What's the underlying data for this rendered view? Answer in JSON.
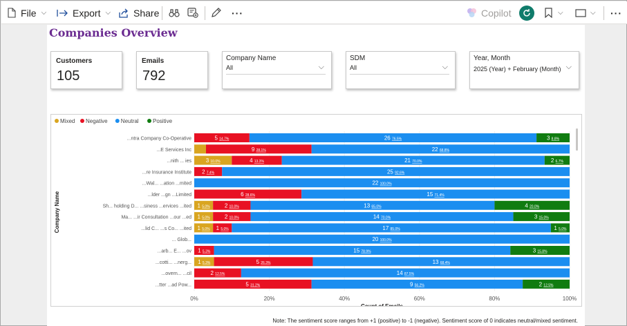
{
  "toolbar": {
    "file_label": "File",
    "export_label": "Export",
    "share_label": "Share",
    "copilot_label": "Copilot",
    "more_label": "···",
    "more_right_label": "···",
    "icons": [
      "file-icon",
      "export-icon",
      "share-icon",
      "binoculars-icon",
      "add-comment-icon",
      "pencil-icon",
      "copilot-icon",
      "reset-icon",
      "bookmark-icon",
      "view-icon"
    ]
  },
  "report": {
    "title": "Companies Overview",
    "cards": [
      {
        "label": "Customers",
        "value": "105"
      },
      {
        "label": "Emails",
        "value": "792"
      }
    ],
    "slicers": [
      {
        "label": "Company Name",
        "value": "All"
      },
      {
        "label": "SDM",
        "value": "All"
      },
      {
        "label": "Year, Month",
        "value": "2025 (Year) + February (Month)"
      }
    ],
    "note": "Note: The sentiment score ranges from +1 (positive) to -1 (negative). Sentiment score of 0 indicates neutral/mixed sentiment."
  },
  "chart_data": {
    "type": "bar",
    "orientation": "horizontal",
    "stacked": "100%",
    "legend_position": "top-left",
    "xlabel": "Count of Emails",
    "ylabel": "Company Name",
    "x_ticks": [
      "0%",
      "20%",
      "40%",
      "60%",
      "80%",
      "100%"
    ],
    "xlim": [
      0,
      100
    ],
    "colors": {
      "Mixed": "#d9a520",
      "Negative": "#e81123",
      "Neutral": "#1b8ef0",
      "Positive": "#107c10"
    },
    "series_names": [
      "Mixed",
      "Negative",
      "Neutral",
      "Positive"
    ],
    "rows": [
      {
        "label": "...ntra Company Co-Operative",
        "segments": [
          {
            "series": "Negative",
            "value": 5,
            "label": "5",
            "pct": "14.7%"
          },
          {
            "series": "Neutral",
            "value": 26,
            "label": "26",
            "pct": "76.5%"
          },
          {
            "series": "Positive",
            "value": 3,
            "label": "3",
            "pct": "8.8%"
          }
        ]
      },
      {
        "label": "...E Services Inc",
        "segments": [
          {
            "series": "Mixed",
            "value": 1,
            "label": "",
            "pct": ""
          },
          {
            "series": "Negative",
            "value": 9,
            "label": "9",
            "pct": "28.1%"
          },
          {
            "series": "Neutral",
            "value": 22,
            "label": "22",
            "pct": "68.8%"
          }
        ]
      },
      {
        "label": "...nith ... ies",
        "segments": [
          {
            "series": "Mixed",
            "value": 3,
            "label": "3",
            "pct": "10.0%"
          },
          {
            "series": "Negative",
            "value": 4,
            "label": "4",
            "pct": "13.3%"
          },
          {
            "series": "Neutral",
            "value": 21,
            "label": "21",
            "pct": "70.0%"
          },
          {
            "series": "Positive",
            "value": 2,
            "label": "2",
            "pct": "6.7%"
          }
        ]
      },
      {
        "label": "...re Insurance Institute",
        "segments": [
          {
            "series": "Negative",
            "value": 2,
            "label": "2",
            "pct": "7.4%"
          },
          {
            "series": "Neutral",
            "value": 25,
            "label": "25",
            "pct": "92.6%"
          }
        ]
      },
      {
        "label": "...Wal... ...ation ...mited",
        "segments": [
          {
            "series": "Neutral",
            "value": 22,
            "label": "22",
            "pct": "100.0%"
          }
        ]
      },
      {
        "label": "...lder ...gn ...Limited",
        "segments": [
          {
            "series": "Negative",
            "value": 6,
            "label": "6",
            "pct": "28.6%"
          },
          {
            "series": "Neutral",
            "value": 15,
            "label": "15",
            "pct": "71.4%"
          }
        ]
      },
      {
        "label": "Sh... holding D... ...siness ...ervices ...ited",
        "segments": [
          {
            "series": "Mixed",
            "value": 1,
            "label": "1",
            "pct": "5.0%"
          },
          {
            "series": "Negative",
            "value": 2,
            "label": "2",
            "pct": "10.0%"
          },
          {
            "series": "Neutral",
            "value": 13,
            "label": "13",
            "pct": "65.0%"
          },
          {
            "series": "Positive",
            "value": 4,
            "label": "4",
            "pct": "20.0%"
          }
        ]
      },
      {
        "label": "Ma... ...ir Consultation ...our ...ed",
        "segments": [
          {
            "series": "Mixed",
            "value": 1,
            "label": "1",
            "pct": "5.0%"
          },
          {
            "series": "Negative",
            "value": 2,
            "label": "2",
            "pct": "10.0%"
          },
          {
            "series": "Neutral",
            "value": 14,
            "label": "14",
            "pct": "70.0%"
          },
          {
            "series": "Positive",
            "value": 3,
            "label": "3",
            "pct": "15.0%"
          }
        ]
      },
      {
        "label": "...lid C... ...s Co... ...ited",
        "segments": [
          {
            "series": "Mixed",
            "value": 1,
            "label": "1",
            "pct": "5.0%"
          },
          {
            "series": "Negative",
            "value": 1,
            "label": "1",
            "pct": "5.0%"
          },
          {
            "series": "Neutral",
            "value": 17,
            "label": "17",
            "pct": "85.0%"
          },
          {
            "series": "Positive",
            "value": 1,
            "label": "1",
            "pct": "5.0%"
          }
        ]
      },
      {
        "label": "... Glob...",
        "segments": [
          {
            "series": "Neutral",
            "value": 20,
            "label": "20",
            "pct": "100.0%"
          }
        ]
      },
      {
        "label": "...arb... E... ...ov",
        "segments": [
          {
            "series": "Negative",
            "value": 1,
            "label": "1",
            "pct": "5.3%"
          },
          {
            "series": "Neutral",
            "value": 15,
            "label": "15",
            "pct": "78.9%"
          },
          {
            "series": "Positive",
            "value": 3,
            "label": "3",
            "pct": "15.8%"
          }
        ]
      },
      {
        "label": "...cotti... ...nerg...",
        "segments": [
          {
            "series": "Mixed",
            "value": 1,
            "label": "1",
            "pct": "5.3%"
          },
          {
            "series": "Negative",
            "value": 5,
            "label": "5",
            "pct": "26.3%"
          },
          {
            "series": "Neutral",
            "value": 13,
            "label": "13",
            "pct": "68.4%"
          }
        ]
      },
      {
        "label": "...overn... ...cil",
        "segments": [
          {
            "series": "Negative",
            "value": 2,
            "label": "2",
            "pct": "12.5%"
          },
          {
            "series": "Neutral",
            "value": 14,
            "label": "14",
            "pct": "87.5%"
          }
        ]
      },
      {
        "label": "...tter ...ad Pow...",
        "segments": [
          {
            "series": "Negative",
            "value": 5,
            "label": "5",
            "pct": "31.2%"
          },
          {
            "series": "Neutral",
            "value": 9,
            "label": "9",
            "pct": "56.2%"
          },
          {
            "series": "Positive",
            "value": 2,
            "label": "2",
            "pct": "12.5%"
          }
        ]
      }
    ]
  }
}
